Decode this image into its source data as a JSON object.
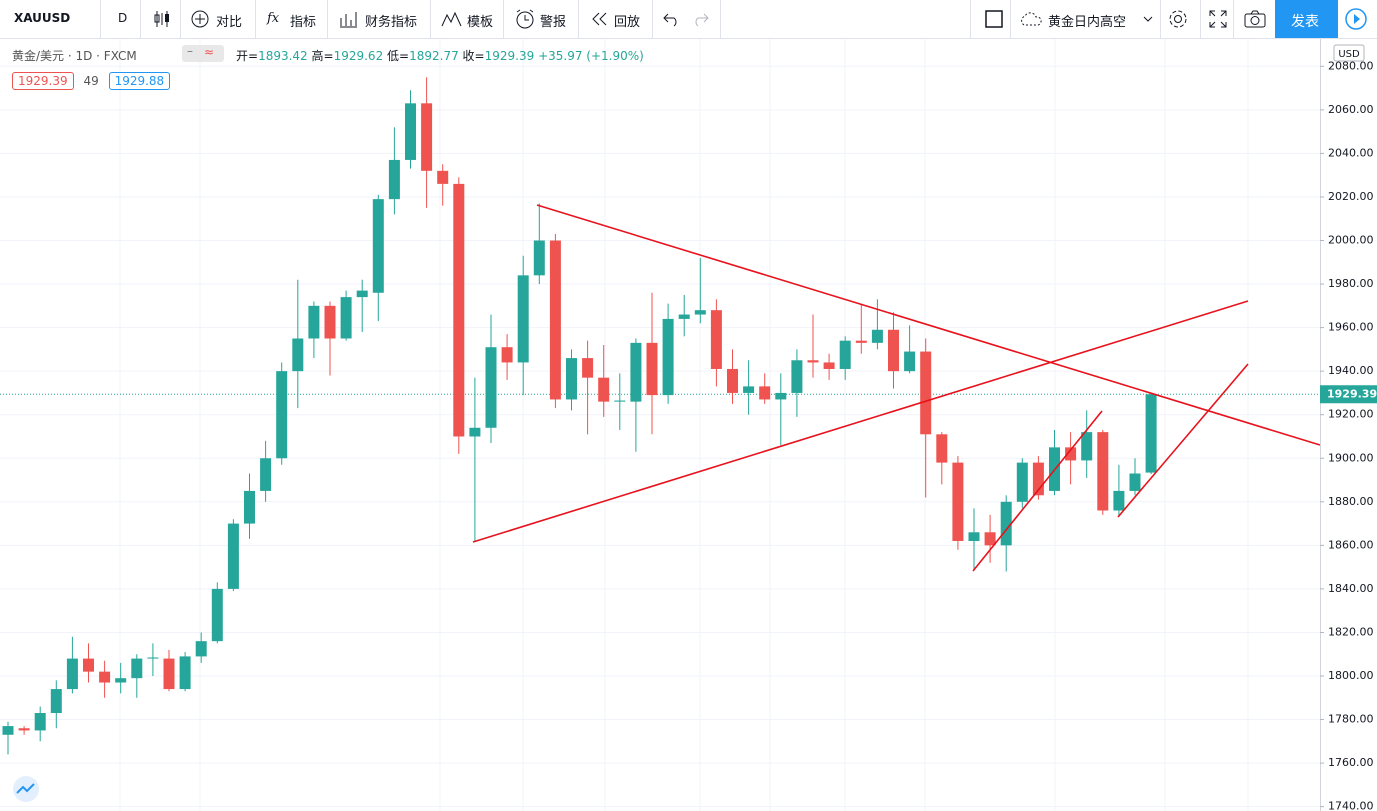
{
  "toolbar": {
    "symbol": "XAUUSD",
    "interval": "D",
    "items": [
      "对比",
      "指标",
      "财务指标",
      "模板",
      "警报",
      "回放"
    ],
    "idea": "黄金日内高空",
    "publish": "发表"
  },
  "legend": {
    "symbol": "黄金/美元 · 1D · FXCM",
    "ohlc": [
      {
        "label": "开=",
        "value": "1893.42"
      },
      {
        "label": "高=",
        "value": "1929.62"
      },
      {
        "label": "低=",
        "value": "1892.77"
      },
      {
        "label": "收=",
        "value": "1929.39"
      }
    ],
    "change": "+35.97 (+1.90%)",
    "bid": "1929.39",
    "spread": "49",
    "ask": "1929.88"
  },
  "chart_data": {
    "type": "candlestick",
    "currency": "USD",
    "up_color": "#26a69a",
    "down_color": "#ef5350",
    "grid": true,
    "open": [
      1773,
      1776,
      1775,
      1783,
      1794,
      1808,
      1802,
      1797,
      1799,
      1808,
      1808,
      1794,
      1809,
      1816,
      1840,
      1870,
      1885,
      1900,
      1940,
      1955,
      1970,
      1955,
      1974,
      1976,
      2019,
      2037,
      2063,
      2032,
      2026,
      1910,
      1914,
      1951,
      1944,
      1984,
      2000,
      1927,
      1946,
      1937,
      1926,
      1926,
      1953,
      1929,
      1964,
      1966,
      1968,
      1941,
      1930,
      1933,
      1927,
      1930,
      1945,
      1944,
      1941,
      1954,
      1953,
      1959,
      1940,
      1949,
      1911,
      1898,
      1862,
      1866,
      1860,
      1880,
      1898,
      1885,
      1905,
      1899,
      1912,
      1876,
      1885,
      1893.42
    ],
    "high": [
      1779,
      1777,
      1786,
      1798,
      1818,
      1815,
      1807,
      1806,
      1810,
      1815,
      1812,
      1811,
      1820,
      1843,
      1872,
      1893,
      1908,
      1944,
      1982,
      1972,
      1972,
      1977,
      1982,
      2021,
      2052,
      2069,
      2075,
      2035,
      2029,
      1937,
      1966,
      1957,
      1993,
      2017,
      2003,
      1950,
      1954,
      1952,
      1939,
      1955,
      1976,
      1971,
      1975,
      1992,
      1973,
      1950,
      1945,
      1939,
      1939,
      1950,
      1966,
      1948,
      1956,
      1971,
      1973,
      1967,
      1961,
      1955,
      1912,
      1901,
      1877,
      1874,
      1883,
      1900,
      1901,
      1913,
      1912,
      1922,
      1913,
      1897,
      1900,
      1929.62
    ],
    "low": [
      1764,
      1773,
      1770,
      1776,
      1792,
      1797,
      1790,
      1792,
      1790,
      1800,
      1793,
      1793,
      1806,
      1815,
      1839,
      1863,
      1880,
      1897,
      1923,
      1946,
      1938,
      1954,
      1958,
      1963,
      2012,
      2033,
      2015,
      2016,
      1902,
      1862,
      1907,
      1936,
      1929,
      1980,
      1923,
      1922,
      1911,
      1919,
      1913,
      1903,
      1911,
      1925,
      1956,
      1962,
      1933,
      1925,
      1920,
      1925,
      1906,
      1919,
      1937,
      1936,
      1936,
      1948,
      1950,
      1932,
      1939,
      1882,
      1888,
      1858,
      1849,
      1852,
      1848,
      1877,
      1881,
      1883,
      1888,
      1891,
      1874,
      1873,
      1883,
      1892.77
    ],
    "close": [
      1777,
      1775,
      1783,
      1794,
      1808,
      1802,
      1797,
      1799,
      1808,
      1808.5,
      1794,
      1809,
      1816,
      1840,
      1870,
      1885,
      1900,
      1940,
      1955,
      1970,
      1955,
      1974,
      1977,
      2019,
      2037,
      2063,
      2032,
      2026,
      1910,
      1914,
      1951,
      1944,
      1984,
      2000,
      1927,
      1946,
      1937,
      1926,
      1926.5,
      1953,
      1929,
      1964,
      1966,
      1968,
      1941,
      1930,
      1933,
      1927,
      1930,
      1945,
      1944,
      1941,
      1954,
      1953,
      1959,
      1940,
      1949,
      1911,
      1898,
      1862,
      1866,
      1860,
      1880,
      1898,
      1883,
      1905,
      1899,
      1912,
      1876,
      1885,
      1893,
      1929.39
    ],
    "last_price": 1929.39,
    "ylim": [
      1738,
      2093
    ],
    "yticks": [
      {
        "value": 1740,
        "label": "1740.00"
      },
      {
        "value": 1760,
        "label": "1760.00"
      },
      {
        "value": 1780,
        "label": "1780.00"
      },
      {
        "value": 1800,
        "label": "1800.00"
      },
      {
        "value": 1820,
        "label": "1820.00"
      },
      {
        "value": 1840,
        "label": "1840.00"
      },
      {
        "value": 1860,
        "label": "1860.00"
      },
      {
        "value": 1880,
        "label": "1880.00"
      },
      {
        "value": 1900,
        "label": "1900.00"
      },
      {
        "value": 1920,
        "label": "1920.00"
      },
      {
        "value": 1940,
        "label": "1940.00"
      },
      {
        "value": 1960,
        "label": "1960.00"
      },
      {
        "value": 1980,
        "label": "1980.00"
      },
      {
        "value": 2000,
        "label": "2000.00"
      },
      {
        "value": 2020,
        "label": "2020.00"
      },
      {
        "value": 2040,
        "label": "2040.00"
      },
      {
        "value": 2060,
        "label": "2060.00"
      },
      {
        "value": 2080,
        "label": "2080.00"
      }
    ]
  }
}
